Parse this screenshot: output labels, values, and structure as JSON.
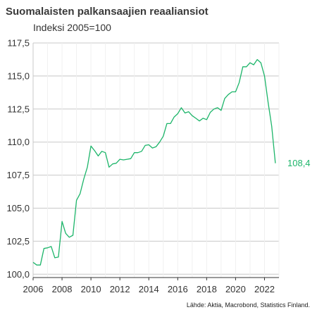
{
  "chart_data": {
    "type": "line",
    "title": "Suomalaisten palkansaajien reaaliansiot",
    "subtitle": "Indeksi 2005=100",
    "source": "Lähde: Aktia, Macrobond, Statistics Finland.",
    "xlabel": "",
    "ylabel": "",
    "xlim": [
      2006,
      2023
    ],
    "ylim": [
      99.75,
      117.5
    ],
    "x_ticks": [
      2006,
      2008,
      2010,
      2012,
      2014,
      2016,
      2018,
      2020,
      2022
    ],
    "x_tick_labels": [
      "2006",
      "2008",
      "2010",
      "2012",
      "2014",
      "2016",
      "2018",
      "2020",
      "2022"
    ],
    "y_ticks": [
      100.0,
      102.5,
      105.0,
      107.5,
      110.0,
      112.5,
      115.0,
      117.5
    ],
    "y_tick_labels": [
      "100,0",
      "102,5",
      "105,0",
      "107,5",
      "110,0",
      "112,5",
      "115,0",
      "117,5"
    ],
    "grid": "horizontal",
    "end_label": "108,4",
    "series": [
      {
        "name": "",
        "color": "#1db56a",
        "x": [
          2006.0,
          2006.25,
          2006.5,
          2006.75,
          2007.0,
          2007.25,
          2007.5,
          2007.75,
          2008.0,
          2008.25,
          2008.5,
          2008.75,
          2009.0,
          2009.25,
          2009.5,
          2009.75,
          2010.0,
          2010.25,
          2010.5,
          2010.75,
          2011.0,
          2011.25,
          2011.5,
          2011.75,
          2012.0,
          2012.25,
          2012.5,
          2012.75,
          2013.0,
          2013.25,
          2013.5,
          2013.75,
          2014.0,
          2014.25,
          2014.5,
          2014.75,
          2015.0,
          2015.25,
          2015.5,
          2015.75,
          2016.0,
          2016.25,
          2016.5,
          2016.75,
          2017.0,
          2017.25,
          2017.5,
          2017.75,
          2018.0,
          2018.25,
          2018.5,
          2018.75,
          2019.0,
          2019.25,
          2019.5,
          2019.75,
          2020.0,
          2020.25,
          2020.5,
          2020.75,
          2021.0,
          2021.25,
          2021.5,
          2021.75,
          2022.0,
          2022.25,
          2022.5,
          2022.75
        ],
        "values": [
          100.9,
          100.7,
          100.7,
          101.95,
          102.0,
          102.1,
          101.25,
          101.3,
          104.0,
          103.1,
          102.8,
          102.95,
          105.6,
          106.1,
          107.2,
          108.1,
          109.7,
          109.35,
          108.95,
          109.3,
          109.2,
          108.1,
          108.35,
          108.4,
          108.7,
          108.65,
          108.7,
          108.75,
          109.2,
          109.2,
          109.3,
          109.75,
          109.8,
          109.55,
          109.65,
          110.0,
          110.45,
          111.4,
          111.4,
          111.9,
          112.15,
          112.6,
          112.2,
          112.3,
          112.0,
          111.8,
          111.6,
          111.8,
          111.7,
          112.25,
          112.5,
          112.6,
          112.4,
          113.3,
          113.6,
          113.8,
          113.8,
          114.5,
          115.7,
          115.7,
          116.0,
          115.85,
          116.25,
          116.0,
          115.0,
          113.0,
          111.2,
          108.4
        ]
      }
    ]
  }
}
